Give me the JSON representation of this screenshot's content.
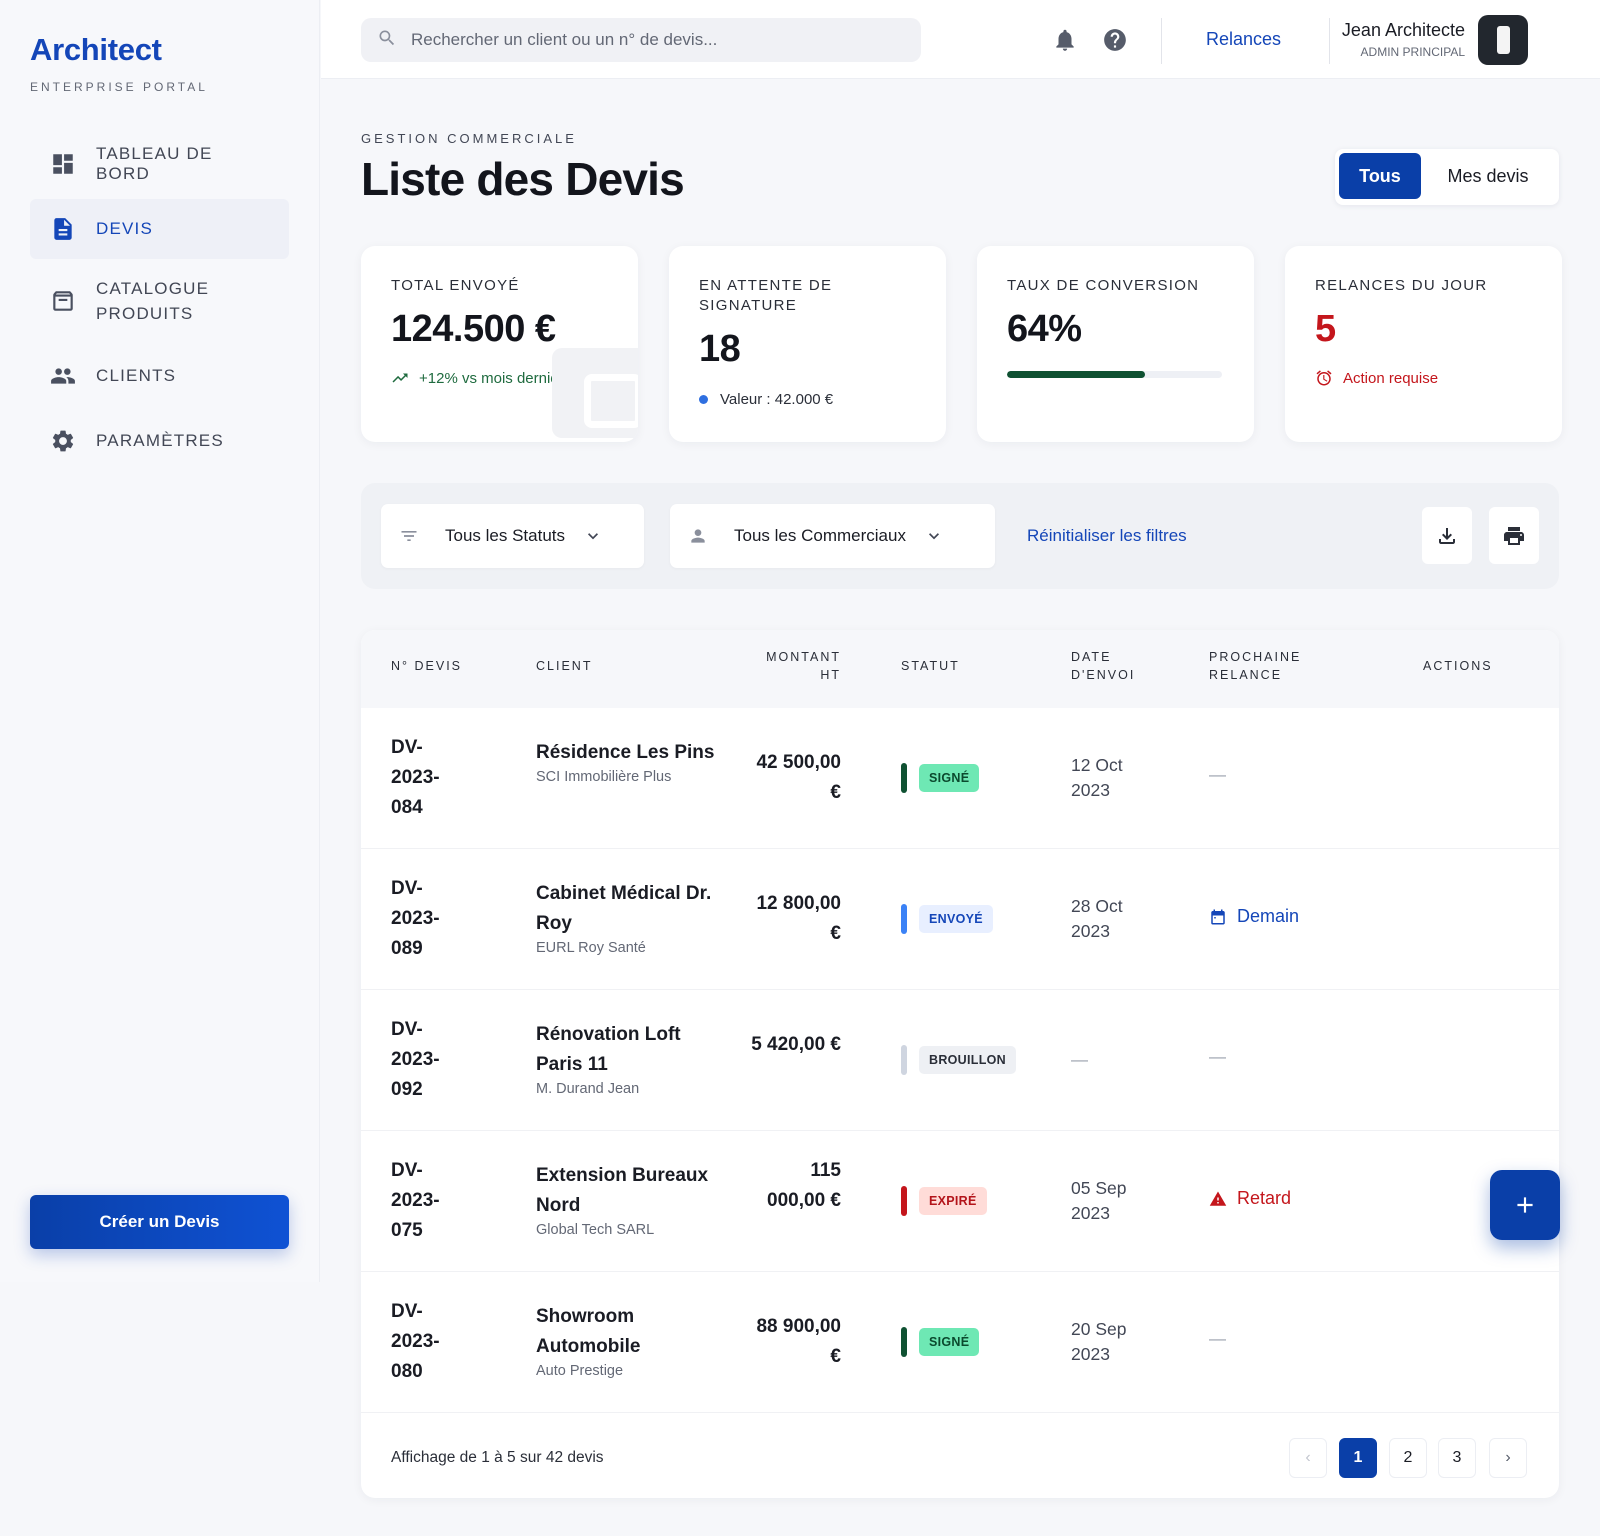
{
  "brand": {
    "name": "Architect",
    "subtitle": "ENTERPRISE PORTAL"
  },
  "sidebar": {
    "items": [
      {
        "label": "TABLEAU DE BORD",
        "icon": "dashboard-icon",
        "active": false
      },
      {
        "label": "DEVIS",
        "icon": "document-icon",
        "active": true
      },
      {
        "label": "CATALOGUE PRODUITS",
        "icon": "archive-icon",
        "active": false
      },
      {
        "label": "CLIENTS",
        "icon": "people-icon",
        "active": false
      },
      {
        "label": "PARAMÈTRES",
        "icon": "gear-icon",
        "active": false
      }
    ],
    "create_button": "Créer un Devis"
  },
  "header": {
    "search_placeholder": "Rechercher un client ou un n° de devis...",
    "relances_link": "Relances",
    "user_name": "Jean Architecte",
    "user_role": "ADMIN PRINCIPAL"
  },
  "page": {
    "kicker": "GESTION COMMERCIALE",
    "title": "Liste des Devis",
    "toggle": {
      "all": "Tous",
      "mine": "Mes devis"
    }
  },
  "stats": {
    "total": {
      "label": "TOTAL ENVOYÉ",
      "value": "124.500 €",
      "note": "+12% vs mois dernier"
    },
    "pending": {
      "label": "EN ATTENTE DE SIGNATURE",
      "value": "18",
      "note": "Valeur : 42.000 €"
    },
    "conversion": {
      "label": "TAUX DE CONVERSION",
      "value": "64%",
      "progress": 0.64
    },
    "reminders": {
      "label": "RELANCES DU JOUR",
      "value": "5",
      "note": "Action requise"
    }
  },
  "filters": {
    "status": "Tous les Statuts",
    "sales": "Tous les Commerciaux",
    "reset": "Réinitialiser les filtres"
  },
  "table": {
    "columns": {
      "num": "N° DEVIS",
      "client": "CLIENT",
      "amount": "MONTANT HT",
      "status": "STATUT",
      "date": "DATE D'ENVOI",
      "next": "PROCHAINE RELANCE",
      "actions": "ACTIONS"
    },
    "rows": [
      {
        "num": "DV-2023-084",
        "client": "Résidence Les Pins",
        "company": "SCI Immobilière Plus",
        "amount": "42 500,00 €",
        "status": "SIGNÉ",
        "status_key": "signe",
        "date": "12 Oct 2023",
        "next": "—",
        "next_kind": "none"
      },
      {
        "num": "DV-2023-089",
        "client": "Cabinet Médical Dr. Roy",
        "company": "EURL Roy Santé",
        "amount": "12 800,00 €",
        "status": "ENVOYÉ",
        "status_key": "envoye",
        "date": "28 Oct 2023",
        "next": "Demain",
        "next_kind": "calendar"
      },
      {
        "num": "DV-2023-092",
        "client": "Rénovation Loft Paris 11",
        "company": "M. Durand Jean",
        "amount": "5 420,00 €",
        "status": "BROUILLON",
        "status_key": "brouillon",
        "date": "—",
        "next": "—",
        "next_kind": "none"
      },
      {
        "num": "DV-2023-075",
        "client": "Extension Bureaux Nord",
        "company": "Global Tech SARL",
        "amount": "115 000,00 €",
        "status": "EXPIRÉ",
        "status_key": "expire",
        "date": "05 Sep 2023",
        "next": "Retard",
        "next_kind": "warning"
      },
      {
        "num": "DV-2023-080",
        "client": "Showroom Automobile",
        "company": "Auto Prestige",
        "amount": "88 900,00 €",
        "status": "SIGNÉ",
        "status_key": "signe",
        "date": "20 Sep 2023",
        "next": "—",
        "next_kind": "none"
      }
    ],
    "footer": "Affichage de 1 à 5 sur 42 devis",
    "pages": [
      "1",
      "2",
      "3"
    ],
    "current_page": "1"
  },
  "colors": {
    "accent": "#1446b8",
    "primary_button": "#0a3fa8",
    "signed": "#6ee8b4",
    "signed_bar": "#0f5132",
    "sent_bar": "#3b82f6",
    "draft_bar": "#cfd5e0",
    "expired_bar": "#c4161c",
    "danger": "#c4161c",
    "positive": "#1f6b3f"
  }
}
